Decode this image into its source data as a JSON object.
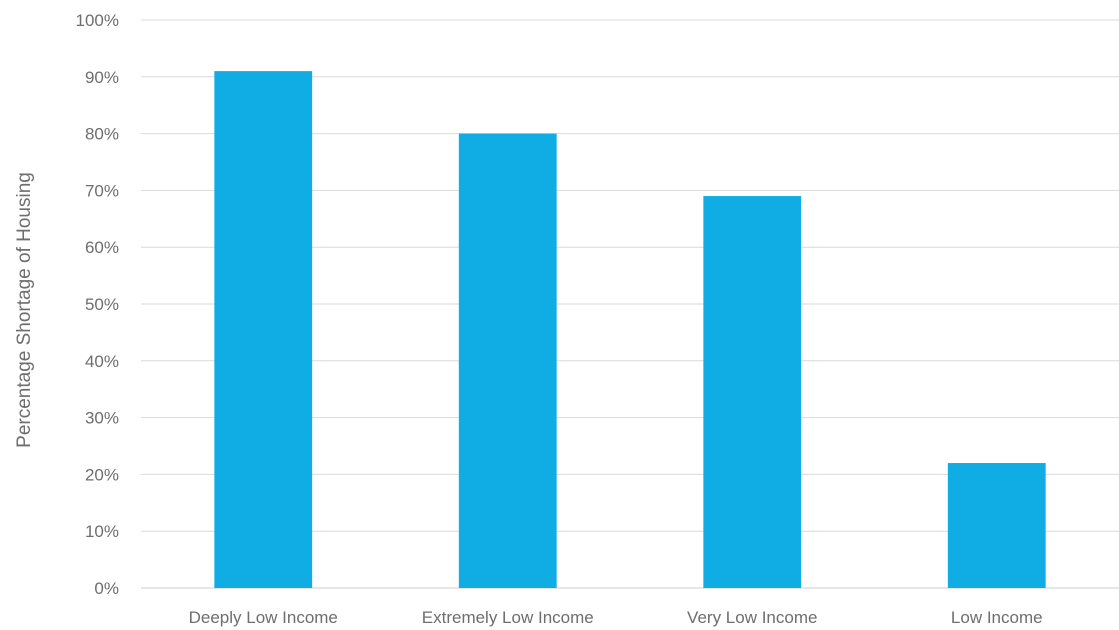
{
  "chart_data": {
    "type": "bar",
    "categories": [
      "Deeply Low Income",
      "Extremely Low Income",
      "Very Low Income",
      "Low Income"
    ],
    "series": [
      {
        "values": [
          0.91,
          0.8,
          0.69,
          0.22
        ]
      }
    ],
    "value_format": "percent",
    "title": "",
    "xlabel": "",
    "ylabel": "Percentage Shortage  of Housing",
    "ylim": [
      0,
      1
    ],
    "yticks": [
      0,
      0.1,
      0.2,
      0.3,
      0.4,
      0.5,
      0.6,
      0.7,
      0.8,
      0.9,
      1.0
    ],
    "ytick_labels": [
      "0%",
      "10%",
      "20%",
      "30%",
      "40%",
      "50%",
      "60%",
      "70%",
      "80%",
      "90%",
      "100%"
    ],
    "grid": true,
    "legend": "none",
    "colors": {
      "bar": "#10ace4",
      "grid": "#d9d9d9",
      "text": "#6e6e6e"
    }
  }
}
